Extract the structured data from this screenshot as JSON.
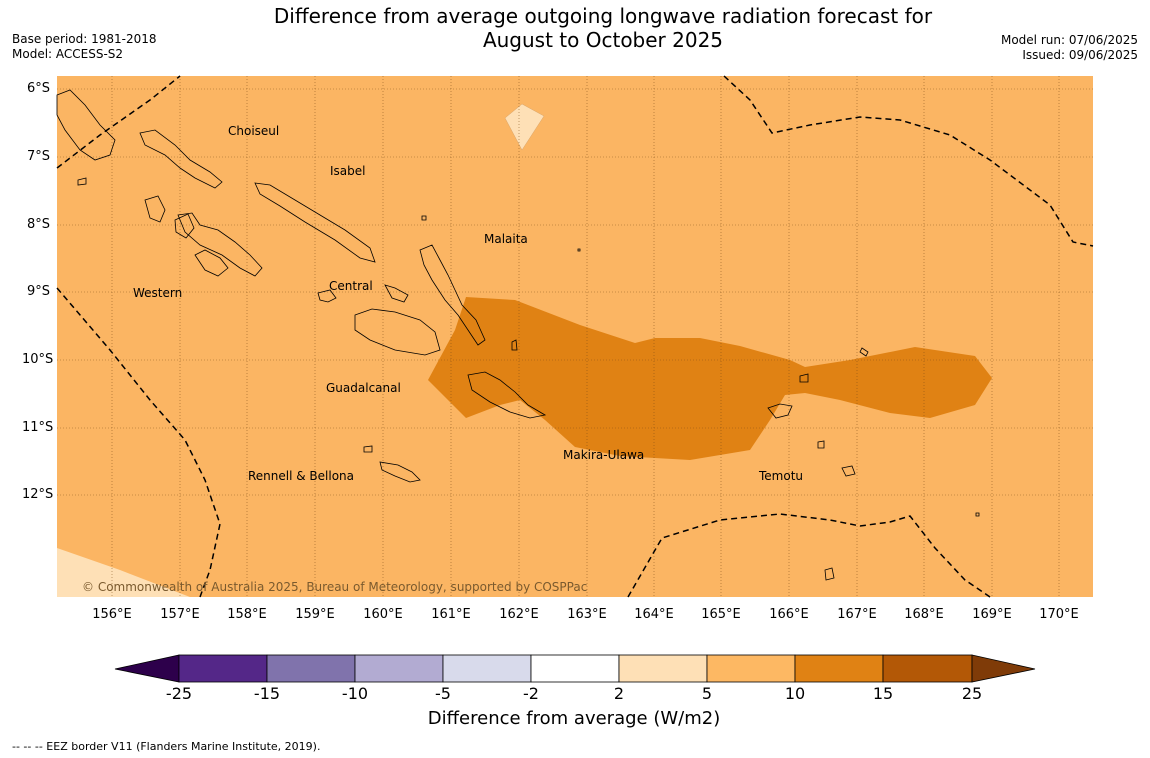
{
  "title": {
    "line1": "Difference from average outgoing longwave radiation forecast for",
    "line2": "August to October 2025"
  },
  "meta_left": {
    "base_period": "Base period: 1981-2018",
    "model": "Model: ACCESS-S2"
  },
  "meta_right": {
    "model_run": "Model run: 07/06/2025",
    "issued": "Issued: 09/06/2025"
  },
  "map": {
    "lat_labels": [
      "6°S",
      "7°S",
      "8°S",
      "9°S",
      "10°S",
      "11°S",
      "12°S"
    ],
    "lon_labels": [
      "156°E",
      "157°E",
      "158°E",
      "159°E",
      "160°E",
      "161°E",
      "162°E",
      "163°E",
      "164°E",
      "165°E",
      "166°E",
      "167°E",
      "168°E",
      "169°E",
      "170°E"
    ],
    "places": [
      {
        "name": "Choiseul"
      },
      {
        "name": "Isabel"
      },
      {
        "name": "Malaita"
      },
      {
        "name": "Western"
      },
      {
        "name": "Central"
      },
      {
        "name": "Guadalcanal"
      },
      {
        "name": "Makira-Ulawa"
      },
      {
        "name": "Rennell & Bellona"
      },
      {
        "name": "Temotu"
      }
    ],
    "copyright": "© Commonwealth of Australia 2025, Bureau of Meteorology, supported by COSPPac",
    "colors": {
      "background_class": "#fbb563",
      "high_class": "#e08214",
      "low_class": "#fee0b6"
    }
  },
  "colorbar": {
    "ticks": [
      "-25",
      "-15",
      "-10",
      "-5",
      "-2",
      "2",
      "5",
      "10",
      "15",
      "25"
    ],
    "colors": [
      "#2d004b",
      "#542788",
      "#8073ac",
      "#b2abd2",
      "#d8daeb",
      "#ffffff",
      "#fee0b6",
      "#fdb863",
      "#e08214",
      "#b35806",
      "#7f3b08"
    ],
    "label": "Difference from average (W/m2)"
  },
  "footer": "--  --  -- EEZ border V11 (Flanders Marine Institute, 2019)."
}
